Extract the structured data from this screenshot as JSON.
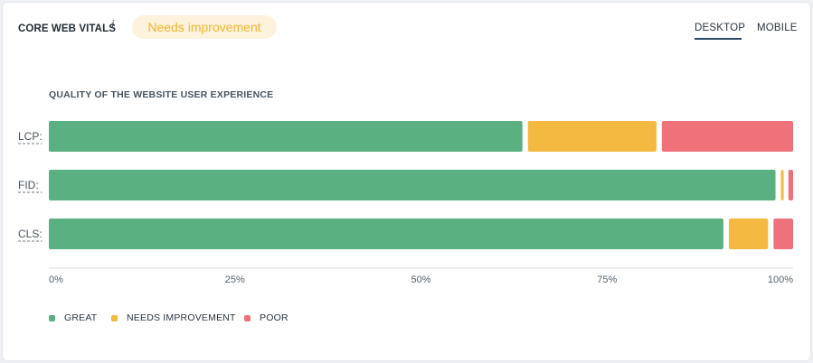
{
  "header": {
    "title": "CORE WEB VITALS",
    "info_icon": "i",
    "status": "Needs improvement",
    "tabs": [
      "DESKTOP",
      "MOBILE"
    ],
    "active_tab": "DESKTOP"
  },
  "colors": {
    "great": "#5bb081",
    "needs_improvement": "#f3b940",
    "poor": "#ef727a",
    "badge_bg": "#fdf3dd",
    "badge_text": "#f0b52c",
    "axis": "#d9dde1",
    "tick_text": "#56626c"
  },
  "chart_data": {
    "type": "bar",
    "orientation": "horizontal",
    "stacked": true,
    "title": "QUALITY OF THE WEBSITE USER EXPERIENCE",
    "categories": [
      "LCP:",
      "FID:",
      "CLS:"
    ],
    "series": [
      {
        "name": "GREAT",
        "values": [
          64,
          98,
          91
        ]
      },
      {
        "name": "NEEDS IMPROVEMENT",
        "values": [
          18,
          1,
          6
        ]
      },
      {
        "name": "POOR",
        "values": [
          18,
          1,
          3
        ]
      }
    ],
    "xlim": [
      0,
      100
    ],
    "x_ticks": [
      "0%",
      "25%",
      "50%",
      "75%",
      "100%"
    ],
    "legend_position": "bottom-left"
  }
}
